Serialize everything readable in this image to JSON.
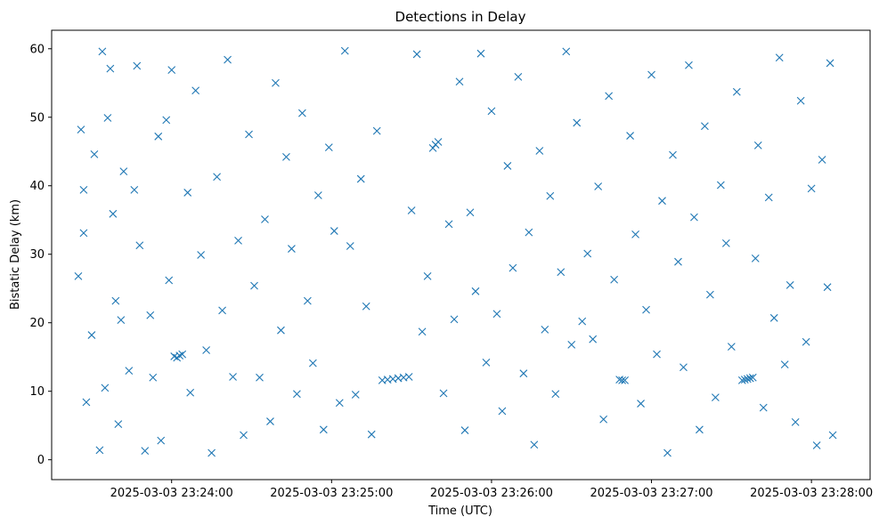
{
  "chart_data": {
    "type": "scatter",
    "title": "Detections in Delay",
    "xlabel": "Time (UTC)",
    "ylabel": "Bistatic Delay (km)",
    "marker": "x",
    "color": "#1f77b4",
    "grid": false,
    "legend": "none",
    "xlim": [
      "2025-03-03 23:23:15",
      "2025-03-03 23:28:22"
    ],
    "ylim": [
      -2.9,
      62.7
    ],
    "x_ticks": [
      "2025-03-03 23:24:00",
      "2025-03-03 23:25:00",
      "2025-03-03 23:26:00",
      "2025-03-03 23:27:00",
      "2025-03-03 23:28:00"
    ],
    "y_ticks": [
      "0",
      "10",
      "20",
      "30",
      "40",
      "50",
      "60"
    ],
    "series": [
      {
        "points": [
          [
            "2025-03-03 23:23:25",
            26.8
          ],
          [
            "2025-03-03 23:23:26",
            48.2
          ],
          [
            "2025-03-03 23:23:27",
            39.4
          ],
          [
            "2025-03-03 23:23:27",
            33.1
          ],
          [
            "2025-03-03 23:23:28",
            8.4
          ],
          [
            "2025-03-03 23:23:30",
            18.2
          ],
          [
            "2025-03-03 23:23:31",
            44.6
          ],
          [
            "2025-03-03 23:23:33",
            1.4
          ],
          [
            "2025-03-03 23:23:34",
            59.6
          ],
          [
            "2025-03-03 23:23:35",
            10.5
          ],
          [
            "2025-03-03 23:23:36",
            49.9
          ],
          [
            "2025-03-03 23:23:37",
            57.1
          ],
          [
            "2025-03-03 23:23:38",
            35.9
          ],
          [
            "2025-03-03 23:23:39",
            23.2
          ],
          [
            "2025-03-03 23:23:40",
            5.2
          ],
          [
            "2025-03-03 23:23:41",
            20.4
          ],
          [
            "2025-03-03 23:23:42",
            42.1
          ],
          [
            "2025-03-03 23:23:44",
            13.0
          ],
          [
            "2025-03-03 23:23:46",
            39.4
          ],
          [
            "2025-03-03 23:23:47",
            57.5
          ],
          [
            "2025-03-03 23:23:48",
            31.3
          ],
          [
            "2025-03-03 23:23:50",
            1.3
          ],
          [
            "2025-03-03 23:23:52",
            21.1
          ],
          [
            "2025-03-03 23:23:53",
            12.0
          ],
          [
            "2025-03-03 23:23:55",
            47.2
          ],
          [
            "2025-03-03 23:23:56",
            2.8
          ],
          [
            "2025-03-03 23:23:58",
            49.6
          ],
          [
            "2025-03-03 23:23:59",
            26.2
          ],
          [
            "2025-03-03 23:24:00",
            56.9
          ],
          [
            "2025-03-03 23:24:01",
            15.1
          ],
          [
            "2025-03-03 23:24:02",
            14.9
          ],
          [
            "2025-03-03 23:24:03",
            15.2
          ],
          [
            "2025-03-03 23:24:04",
            15.4
          ],
          [
            "2025-03-03 23:24:06",
            39.0
          ],
          [
            "2025-03-03 23:24:07",
            9.8
          ],
          [
            "2025-03-03 23:24:09",
            53.9
          ],
          [
            "2025-03-03 23:24:11",
            29.9
          ],
          [
            "2025-03-03 23:24:13",
            16.0
          ],
          [
            "2025-03-03 23:24:15",
            1.0
          ],
          [
            "2025-03-03 23:24:17",
            41.3
          ],
          [
            "2025-03-03 23:24:19",
            21.8
          ],
          [
            "2025-03-03 23:24:21",
            58.4
          ],
          [
            "2025-03-03 23:24:23",
            12.1
          ],
          [
            "2025-03-03 23:24:25",
            32.0
          ],
          [
            "2025-03-03 23:24:27",
            3.6
          ],
          [
            "2025-03-03 23:24:29",
            47.5
          ],
          [
            "2025-03-03 23:24:31",
            25.4
          ],
          [
            "2025-03-03 23:24:33",
            12.0
          ],
          [
            "2025-03-03 23:24:35",
            35.1
          ],
          [
            "2025-03-03 23:24:37",
            5.6
          ],
          [
            "2025-03-03 23:24:39",
            55.0
          ],
          [
            "2025-03-03 23:24:41",
            18.9
          ],
          [
            "2025-03-03 23:24:43",
            44.2
          ],
          [
            "2025-03-03 23:24:45",
            30.8
          ],
          [
            "2025-03-03 23:24:47",
            9.6
          ],
          [
            "2025-03-03 23:24:49",
            50.6
          ],
          [
            "2025-03-03 23:24:51",
            23.2
          ],
          [
            "2025-03-03 23:24:53",
            14.1
          ],
          [
            "2025-03-03 23:24:55",
            38.6
          ],
          [
            "2025-03-03 23:24:57",
            4.4
          ],
          [
            "2025-03-03 23:24:59",
            45.6
          ],
          [
            "2025-03-03 23:25:01",
            33.4
          ],
          [
            "2025-03-03 23:25:03",
            8.3
          ],
          [
            "2025-03-03 23:25:05",
            59.7
          ],
          [
            "2025-03-03 23:25:07",
            31.2
          ],
          [
            "2025-03-03 23:25:09",
            9.5
          ],
          [
            "2025-03-03 23:25:11",
            41.0
          ],
          [
            "2025-03-03 23:25:13",
            22.4
          ],
          [
            "2025-03-03 23:25:15",
            3.7
          ],
          [
            "2025-03-03 23:25:17",
            48.0
          ],
          [
            "2025-03-03 23:25:19",
            11.6
          ],
          [
            "2025-03-03 23:25:21",
            11.7
          ],
          [
            "2025-03-03 23:25:23",
            11.8
          ],
          [
            "2025-03-03 23:25:25",
            11.9
          ],
          [
            "2025-03-03 23:25:27",
            12.0
          ],
          [
            "2025-03-03 23:25:29",
            12.1
          ],
          [
            "2025-03-03 23:25:30",
            36.4
          ],
          [
            "2025-03-03 23:25:32",
            59.2
          ],
          [
            "2025-03-03 23:25:34",
            18.7
          ],
          [
            "2025-03-03 23:25:36",
            26.8
          ],
          [
            "2025-03-03 23:25:38",
            45.5
          ],
          [
            "2025-03-03 23:25:39",
            46.0
          ],
          [
            "2025-03-03 23:25:40",
            46.4
          ],
          [
            "2025-03-03 23:25:42",
            9.7
          ],
          [
            "2025-03-03 23:25:44",
            34.4
          ],
          [
            "2025-03-03 23:25:46",
            20.5
          ],
          [
            "2025-03-03 23:25:48",
            55.2
          ],
          [
            "2025-03-03 23:25:50",
            4.3
          ],
          [
            "2025-03-03 23:25:52",
            36.1
          ],
          [
            "2025-03-03 23:25:54",
            24.6
          ],
          [
            "2025-03-03 23:25:56",
            59.3
          ],
          [
            "2025-03-03 23:25:58",
            14.2
          ],
          [
            "2025-03-03 23:26:00",
            50.9
          ],
          [
            "2025-03-03 23:26:02",
            21.3
          ],
          [
            "2025-03-03 23:26:04",
            7.1
          ],
          [
            "2025-03-03 23:26:06",
            42.9
          ],
          [
            "2025-03-03 23:26:08",
            28.0
          ],
          [
            "2025-03-03 23:26:10",
            55.9
          ],
          [
            "2025-03-03 23:26:12",
            12.6
          ],
          [
            "2025-03-03 23:26:14",
            33.2
          ],
          [
            "2025-03-03 23:26:16",
            2.2
          ],
          [
            "2025-03-03 23:26:18",
            45.1
          ],
          [
            "2025-03-03 23:26:20",
            19.0
          ],
          [
            "2025-03-03 23:26:22",
            38.5
          ],
          [
            "2025-03-03 23:26:24",
            9.6
          ],
          [
            "2025-03-03 23:26:26",
            27.4
          ],
          [
            "2025-03-03 23:26:28",
            59.6
          ],
          [
            "2025-03-03 23:26:30",
            16.8
          ],
          [
            "2025-03-03 23:26:32",
            49.2
          ],
          [
            "2025-03-03 23:26:34",
            20.2
          ],
          [
            "2025-03-03 23:26:36",
            30.1
          ],
          [
            "2025-03-03 23:26:38",
            17.6
          ],
          [
            "2025-03-03 23:26:40",
            39.9
          ],
          [
            "2025-03-03 23:26:42",
            5.9
          ],
          [
            "2025-03-03 23:26:44",
            53.1
          ],
          [
            "2025-03-03 23:26:46",
            26.3
          ],
          [
            "2025-03-03 23:26:48",
            11.7
          ],
          [
            "2025-03-03 23:26:49",
            11.6
          ],
          [
            "2025-03-03 23:26:50",
            11.6
          ],
          [
            "2025-03-03 23:26:52",
            47.3
          ],
          [
            "2025-03-03 23:26:54",
            32.9
          ],
          [
            "2025-03-03 23:26:56",
            8.2
          ],
          [
            "2025-03-03 23:26:58",
            21.9
          ],
          [
            "2025-03-03 23:27:00",
            56.2
          ],
          [
            "2025-03-03 23:27:02",
            15.4
          ],
          [
            "2025-03-03 23:27:04",
            37.8
          ],
          [
            "2025-03-03 23:27:06",
            1.0
          ],
          [
            "2025-03-03 23:27:08",
            44.5
          ],
          [
            "2025-03-03 23:27:10",
            28.9
          ],
          [
            "2025-03-03 23:27:12",
            13.5
          ],
          [
            "2025-03-03 23:27:14",
            57.6
          ],
          [
            "2025-03-03 23:27:16",
            35.4
          ],
          [
            "2025-03-03 23:27:18",
            4.4
          ],
          [
            "2025-03-03 23:27:20",
            48.7
          ],
          [
            "2025-03-03 23:27:22",
            24.1
          ],
          [
            "2025-03-03 23:27:24",
            9.1
          ],
          [
            "2025-03-03 23:27:26",
            40.1
          ],
          [
            "2025-03-03 23:27:28",
            31.6
          ],
          [
            "2025-03-03 23:27:30",
            16.5
          ],
          [
            "2025-03-03 23:27:32",
            53.7
          ],
          [
            "2025-03-03 23:27:34",
            11.6
          ],
          [
            "2025-03-03 23:27:35",
            11.7
          ],
          [
            "2025-03-03 23:27:36",
            11.8
          ],
          [
            "2025-03-03 23:27:37",
            11.9
          ],
          [
            "2025-03-03 23:27:38",
            12.0
          ],
          [
            "2025-03-03 23:27:39",
            29.4
          ],
          [
            "2025-03-03 23:27:40",
            45.9
          ],
          [
            "2025-03-03 23:27:42",
            7.6
          ],
          [
            "2025-03-03 23:27:44",
            38.3
          ],
          [
            "2025-03-03 23:27:46",
            20.7
          ],
          [
            "2025-03-03 23:27:48",
            58.7
          ],
          [
            "2025-03-03 23:27:50",
            13.9
          ],
          [
            "2025-03-03 23:27:52",
            25.5
          ],
          [
            "2025-03-03 23:27:54",
            5.5
          ],
          [
            "2025-03-03 23:27:56",
            52.4
          ],
          [
            "2025-03-03 23:27:58",
            17.2
          ],
          [
            "2025-03-03 23:28:00",
            39.6
          ],
          [
            "2025-03-03 23:28:02",
            2.1
          ],
          [
            "2025-03-03 23:28:04",
            43.8
          ],
          [
            "2025-03-03 23:28:06",
            25.2
          ],
          [
            "2025-03-03 23:28:07",
            57.9
          ],
          [
            "2025-03-03 23:28:08",
            3.6
          ]
        ]
      }
    ]
  }
}
